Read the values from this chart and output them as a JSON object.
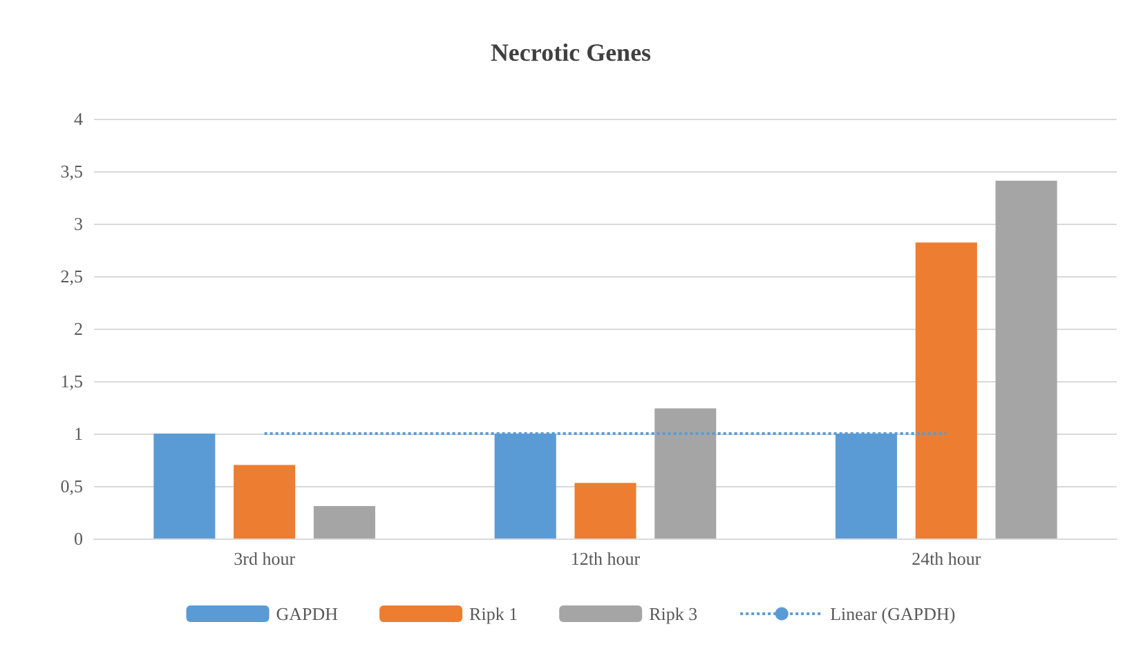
{
  "chart_data": {
    "type": "bar",
    "title": "Necrotic Genes",
    "categories": [
      "3rd hour",
      "12th hour",
      "24th hour"
    ],
    "series": [
      {
        "name": "GAPDH",
        "color": "#5b9bd5",
        "values": [
          1,
          1,
          1
        ]
      },
      {
        "name": "Ripk 1",
        "color": "#ed7d31",
        "values": [
          0.7,
          0.53,
          2.82
        ]
      },
      {
        "name": "Ripk 3",
        "color": "#a5a5a5",
        "values": [
          0.31,
          1.24,
          3.41
        ]
      },
      {
        "name": "Linear (GAPDH)",
        "type": "line",
        "color": "#5b9bd5",
        "line_style": "dotted",
        "marker": "none",
        "values": [
          1,
          1,
          1
        ]
      }
    ],
    "ylim": [
      0,
      4
    ],
    "yticks": [
      0,
      {
        "value": 0.5,
        "label": "0,5"
      },
      1,
      {
        "value": 1.5,
        "label": "1,5"
      },
      2,
      {
        "value": 2.5,
        "label": "2,5"
      },
      3,
      {
        "value": 3.5,
        "label": "3,5"
      },
      4
    ],
    "grid": "y",
    "legend": "bottom"
  }
}
